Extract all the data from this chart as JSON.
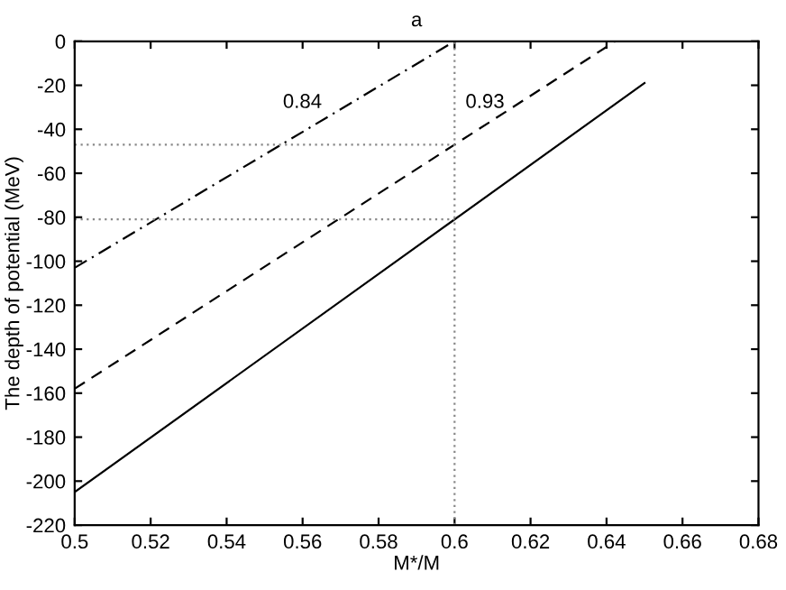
{
  "chart_data": {
    "type": "line",
    "title": "a",
    "xlabel": "M*/M",
    "ylabel": "The depth of potential (MeV)",
    "series": [
      {
        "color": "#000000",
        "line_style": "solid",
        "x": [
          0.5,
          0.6,
          0.65
        ],
        "values": [
          -205,
          -81,
          -19
        ]
      },
      {
        "color": "#000000",
        "line_style": "dashed",
        "x": [
          0.5,
          0.6,
          0.6423
        ],
        "values": [
          -158,
          -47,
          0
        ]
      },
      {
        "color": "#000000",
        "line_style": "dashdot",
        "x": [
          0.5,
          0.6
        ],
        "values": [
          -103,
          0
        ]
      },
      {
        "color": "#888888",
        "line_style": "dotted",
        "x": [
          0.6,
          0.6
        ],
        "values": [
          -220,
          0
        ]
      },
      {
        "color": "#888888",
        "line_style": "dotted",
        "x": [
          0.5,
          0.6
        ],
        "values": [
          -47,
          -47
        ]
      },
      {
        "color": "#888888",
        "line_style": "dotted",
        "x": [
          0.5,
          0.6
        ],
        "values": [
          -81,
          -81
        ]
      }
    ],
    "annotations": [
      "0.84",
      "0.93"
    ],
    "xlim": [
      0.5,
      0.68
    ],
    "xticks": [
      0.5,
      0.52,
      0.54,
      0.56,
      0.58,
      0.6,
      0.62,
      0.64,
      0.66,
      0.68
    ],
    "ylim": [
      -220,
      0
    ],
    "yticks": [
      -220,
      -200,
      -180,
      -160,
      -140,
      -120,
      -100,
      -80,
      -60,
      -40,
      -20,
      0
    ]
  }
}
